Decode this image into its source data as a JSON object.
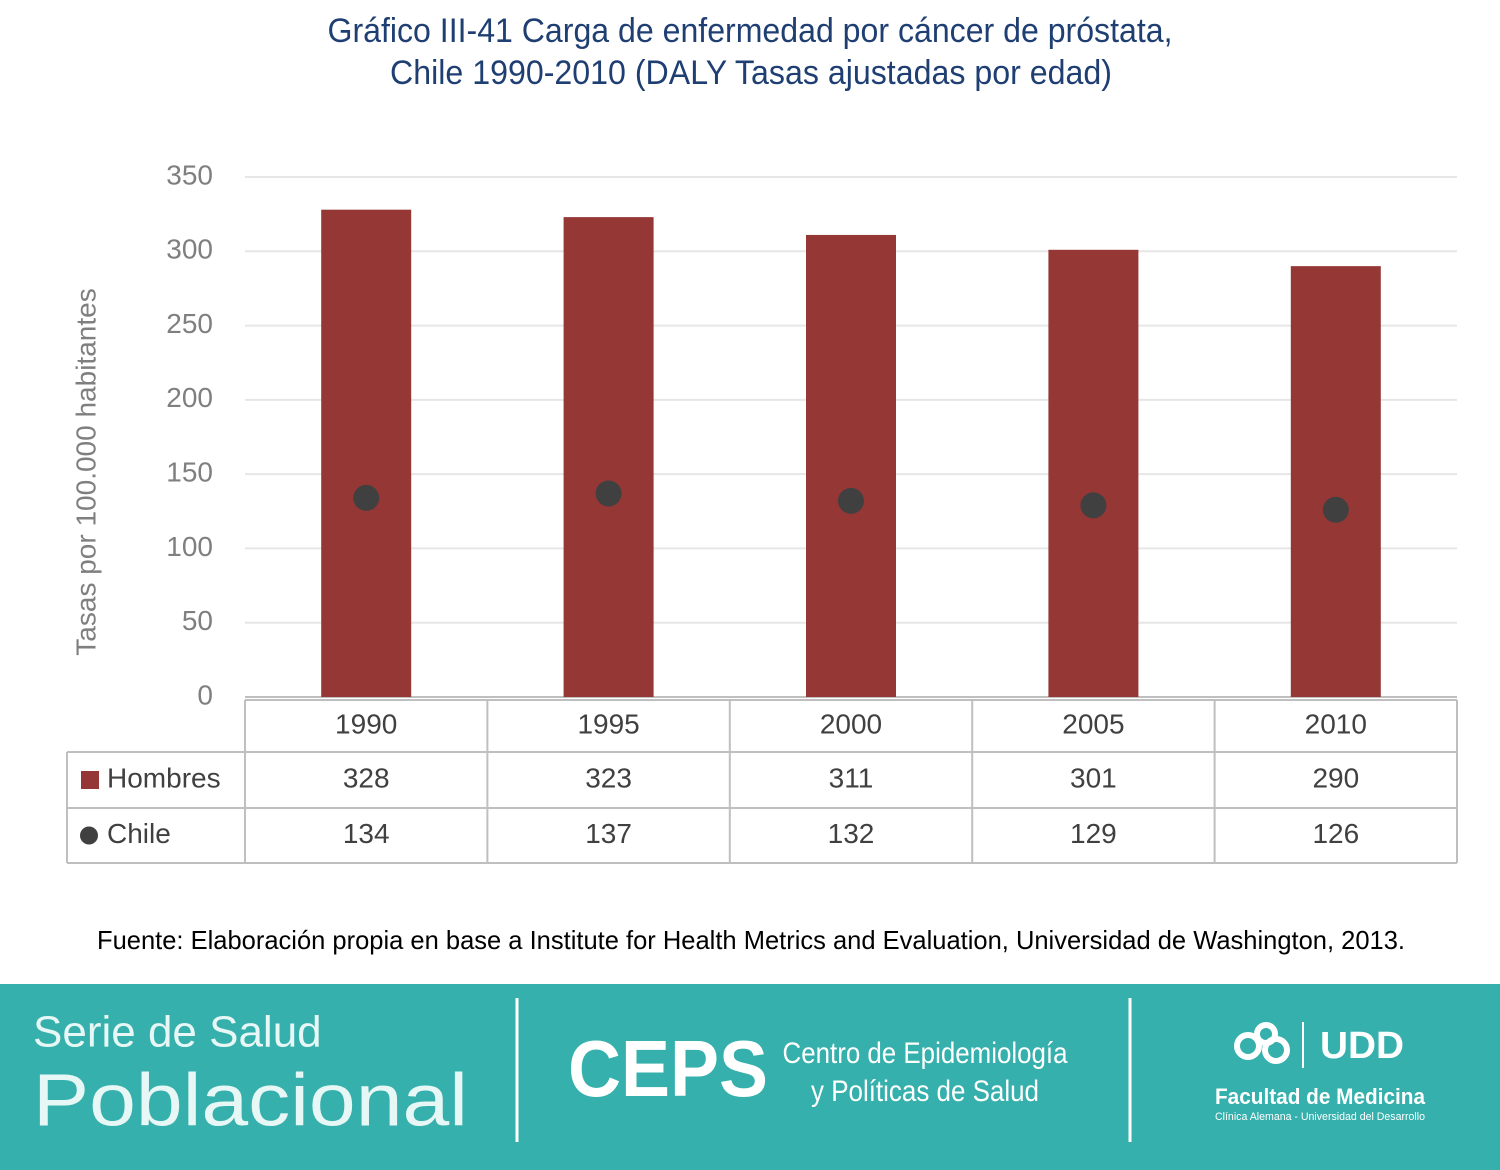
{
  "chart_data": {
    "type": "bar",
    "title": [
      "Gráfico III-41 Carga de enfermedad por cáncer de próstata,",
      "Chile 1990-2010 (DALY Tasas ajustadas por edad)"
    ],
    "ylabel": "Tasas por 100.000 habitantes",
    "categories": [
      "1990",
      "1995",
      "2000",
      "2005",
      "2010"
    ],
    "series": [
      {
        "name": "Hombres",
        "color": "#953735",
        "values": [
          328,
          323,
          311,
          301,
          290
        ]
      },
      {
        "name": "Chile",
        "color": "#404040",
        "values": [
          134,
          137,
          132,
          129,
          126
        ]
      }
    ],
    "ylim": [
      0,
      350
    ],
    "yticks": [
      0,
      50,
      100,
      150,
      200,
      250,
      300,
      350
    ],
    "grid": true,
    "source": "Fuente: Elaboración propia en base a Institute for Health Metrics and Evaluation, Universidad de Washington, 2013."
  },
  "footer": {
    "series_line1": "Serie de Salud",
    "series_line2": "Poblacional",
    "ceps": "CEPS",
    "ceps_line1": "Centro de Epidemiología",
    "ceps_line2": "y Políticas de Salud",
    "udd": "UDD",
    "faculty": "Facultad de Medicina",
    "faculty_sub": "Clínica Alemana - Universidad del Desarrollo"
  }
}
